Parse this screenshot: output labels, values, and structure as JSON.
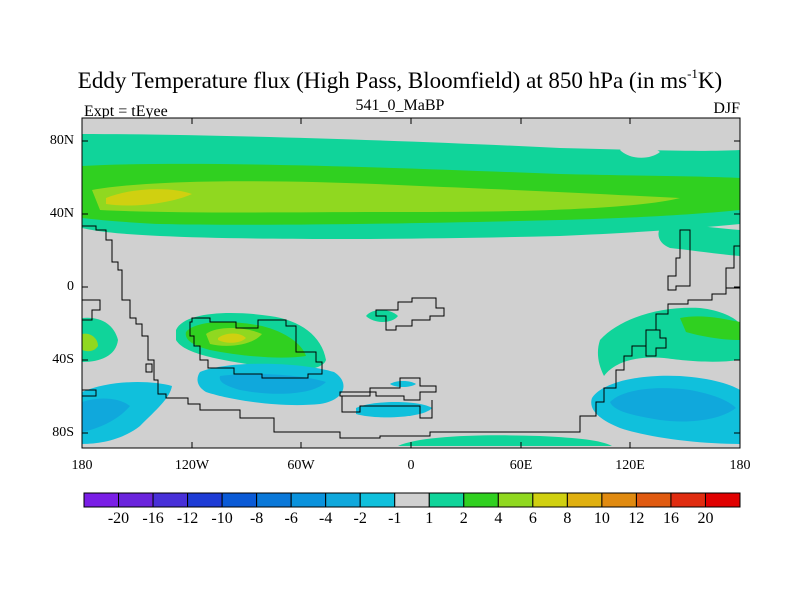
{
  "title": {
    "main": "Eddy Temperature flux (High Pass, Bloomfield) at 850 hPa (in ms",
    "sup": "-1",
    "tail": "K)"
  },
  "left_label": "Expt = tEyee",
  "center_label": "541_0_MaBP",
  "right_label": "DJF",
  "axes": {
    "lat_ticks": [
      "80N",
      "40N",
      "0",
      "40S",
      "80S"
    ],
    "lon_ticks": [
      "180",
      "120W",
      "60W",
      "0",
      "60E",
      "120E",
      "180"
    ]
  },
  "colorbar": {
    "labels": [
      "-20",
      "-16",
      "-12",
      "-10",
      "-8",
      "-6",
      "-4",
      "-2",
      "-1",
      "1",
      "2",
      "4",
      "6",
      "8",
      "10",
      "12",
      "16",
      "20"
    ],
    "colors": [
      "#7a1ee6",
      "#6a24dc",
      "#4830d8",
      "#1e3cd6",
      "#0a5ad6",
      "#0a78d8",
      "#0a92dc",
      "#10a8dc",
      "#10c0dc",
      "#d0d0d0",
      "#10d49a",
      "#30d020",
      "#90d820",
      "#d0d010",
      "#e0b010",
      "#e08a10",
      "#e05a10",
      "#e02c10",
      "#e00000"
    ]
  },
  "fill_colors": {
    "land_bg": "#d0d0d0",
    "pos1": "#10d49a",
    "pos2": "#30d020",
    "pos3": "#90d820",
    "pos4": "#d0d010",
    "neg1": "#10c0dc",
    "neg2": "#10a8dc",
    "neg3": "#0a92dc"
  }
}
